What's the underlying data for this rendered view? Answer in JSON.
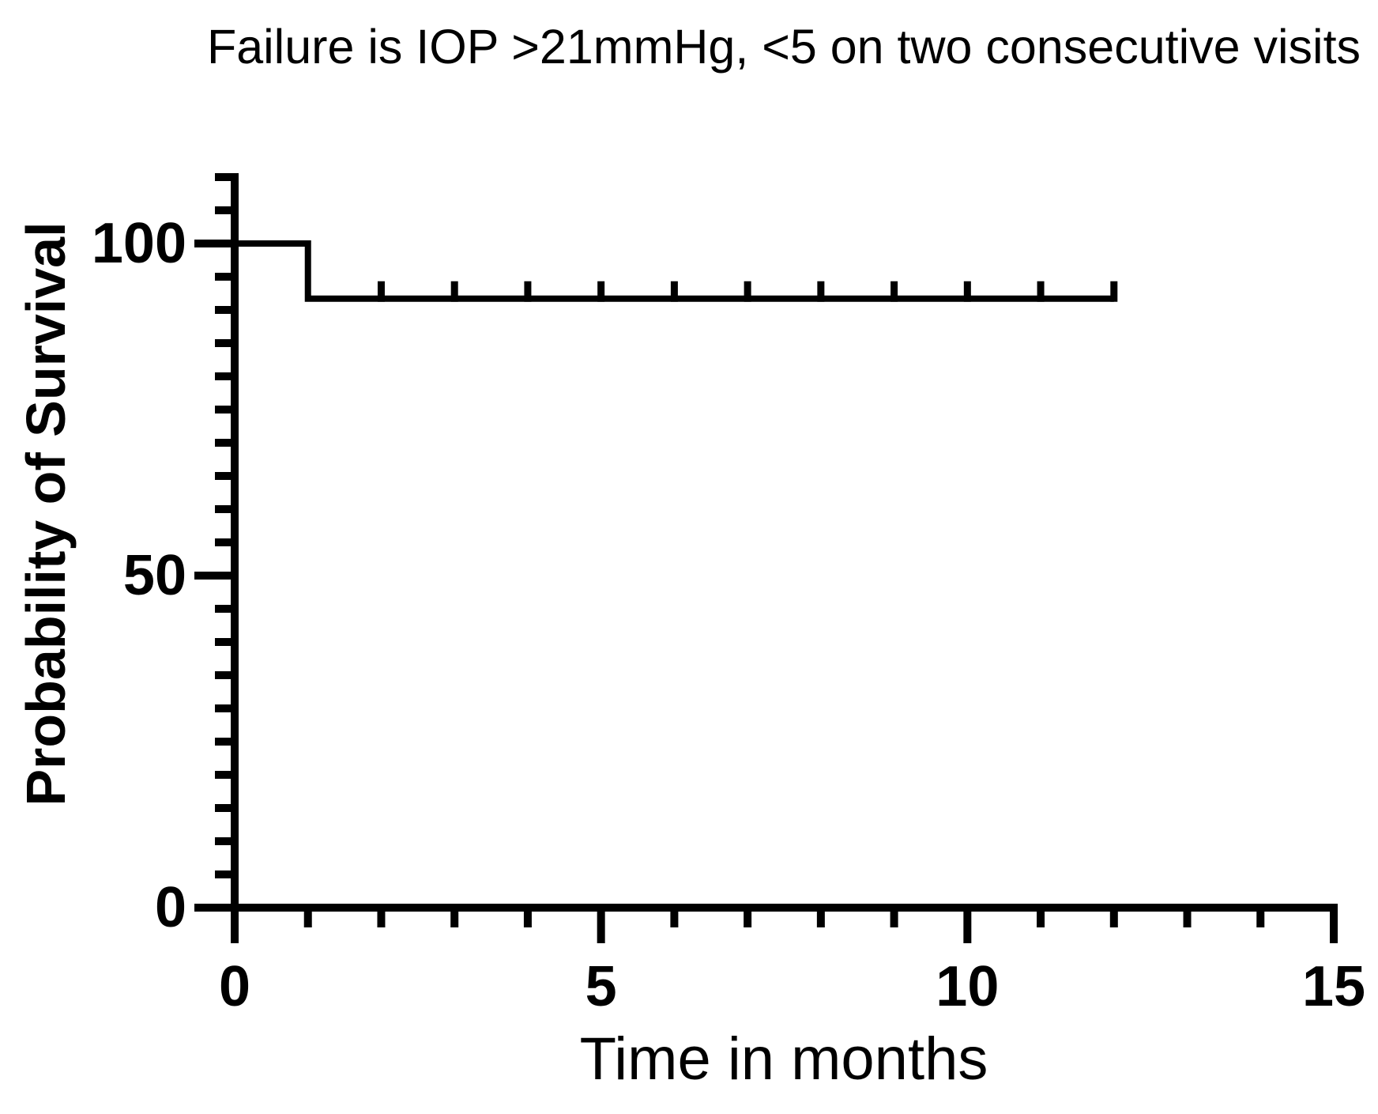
{
  "page": {
    "background_color": "#ffffff",
    "foreground_color": "#000000"
  },
  "chart_data": {
    "type": "line",
    "subtype": "kaplan-meier-survival-step",
    "title": "Failure is IOP >21mmHg, <5 on two consecutive visits",
    "xlabel": "Time in months",
    "ylabel": "Probability of Survival",
    "xlim": [
      0,
      15
    ],
    "ylim": [
      0,
      110
    ],
    "x_major_ticks": [
      0,
      5,
      10,
      15
    ],
    "x_tick_labels": [
      "0",
      "5",
      "10",
      "15"
    ],
    "x_minor_tick_step": 1,
    "y_major_ticks": [
      0,
      50,
      100
    ],
    "y_tick_labels": [
      "0",
      "50",
      "100"
    ],
    "y_minor_tick_step": 5,
    "grid": false,
    "legend": "none",
    "line_color": "#000000",
    "series": [
      {
        "name": "Probability of Survival",
        "step_points": [
          [
            0,
            100
          ],
          [
            1,
            100
          ],
          [
            1,
            91.7
          ],
          [
            12,
            91.7
          ]
        ],
        "events": [
          {
            "time": 1,
            "survival_before": 100,
            "survival_after": 91.7
          }
        ],
        "censor_marks_x": [
          2,
          3,
          4,
          5,
          6,
          7,
          8,
          9,
          10,
          11,
          12
        ],
        "censor_y": 91.7,
        "curve_end_month": 12
      }
    ]
  }
}
